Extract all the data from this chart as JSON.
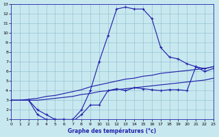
{
  "xlabel": "Graphe des températures (°c)",
  "bg_color": "#c8e8f0",
  "line_color": "#2222aa",
  "grid_color": "#90bfcc",
  "xlim": [
    0,
    23
  ],
  "ylim": [
    1,
    13
  ],
  "xticks": [
    0,
    1,
    2,
    3,
    4,
    5,
    6,
    7,
    8,
    9,
    10,
    11,
    12,
    13,
    14,
    15,
    16,
    17,
    18,
    19,
    20,
    21,
    22,
    23
  ],
  "yticks": [
    1,
    2,
    3,
    4,
    5,
    6,
    7,
    8,
    9,
    10,
    11,
    12,
    13
  ],
  "curve_upper_x": [
    0,
    1,
    2,
    3,
    4,
    5,
    6,
    7,
    8,
    9,
    10,
    11,
    12,
    13,
    14,
    15,
    16,
    17,
    18,
    19,
    20,
    21,
    22,
    23
  ],
  "curve_upper_y": [
    3.0,
    3.0,
    3.1,
    3.2,
    3.4,
    3.5,
    3.7,
    3.9,
    4.1,
    4.4,
    4.6,
    4.8,
    5.0,
    5.2,
    5.3,
    5.5,
    5.6,
    5.8,
    5.9,
    6.0,
    6.1,
    6.2,
    6.3,
    6.5
  ],
  "curve_lower_x": [
    0,
    1,
    2,
    3,
    4,
    5,
    6,
    7,
    8,
    9,
    10,
    11,
    12,
    13,
    14,
    15,
    16,
    17,
    18,
    19,
    20,
    21,
    22,
    23
  ],
  "curve_lower_y": [
    3.0,
    3.0,
    3.0,
    3.0,
    3.1,
    3.2,
    3.3,
    3.4,
    3.6,
    3.7,
    3.9,
    4.0,
    4.1,
    4.2,
    4.3,
    4.4,
    4.5,
    4.6,
    4.7,
    4.8,
    4.9,
    5.0,
    5.1,
    5.3
  ],
  "curve_peak_x": [
    0,
    2,
    3,
    4,
    5,
    6,
    7,
    8,
    9,
    10,
    11,
    12,
    13,
    14,
    15,
    16,
    17,
    18,
    19,
    20,
    21,
    22,
    23
  ],
  "curve_peak_y": [
    3.0,
    3.0,
    1.5,
    1.0,
    1.0,
    1.0,
    1.0,
    2.0,
    4.0,
    7.0,
    9.7,
    12.5,
    12.7,
    12.5,
    12.5,
    11.5,
    8.5,
    7.5,
    7.3,
    6.8,
    6.5,
    6.3,
    6.5
  ],
  "curve_dip_x": [
    0,
    2,
    3,
    4,
    5,
    6,
    7,
    8,
    9,
    10,
    11,
    12,
    13,
    14,
    15,
    16,
    17,
    18,
    19,
    20,
    21,
    22,
    23
  ],
  "curve_dip_y": [
    3.0,
    3.0,
    2.0,
    1.5,
    1.0,
    1.0,
    0.8,
    1.5,
    2.5,
    2.5,
    4.0,
    4.2,
    4.0,
    4.3,
    4.2,
    4.1,
    4.0,
    4.1,
    4.1,
    4.0,
    6.5,
    6.0,
    6.3
  ]
}
